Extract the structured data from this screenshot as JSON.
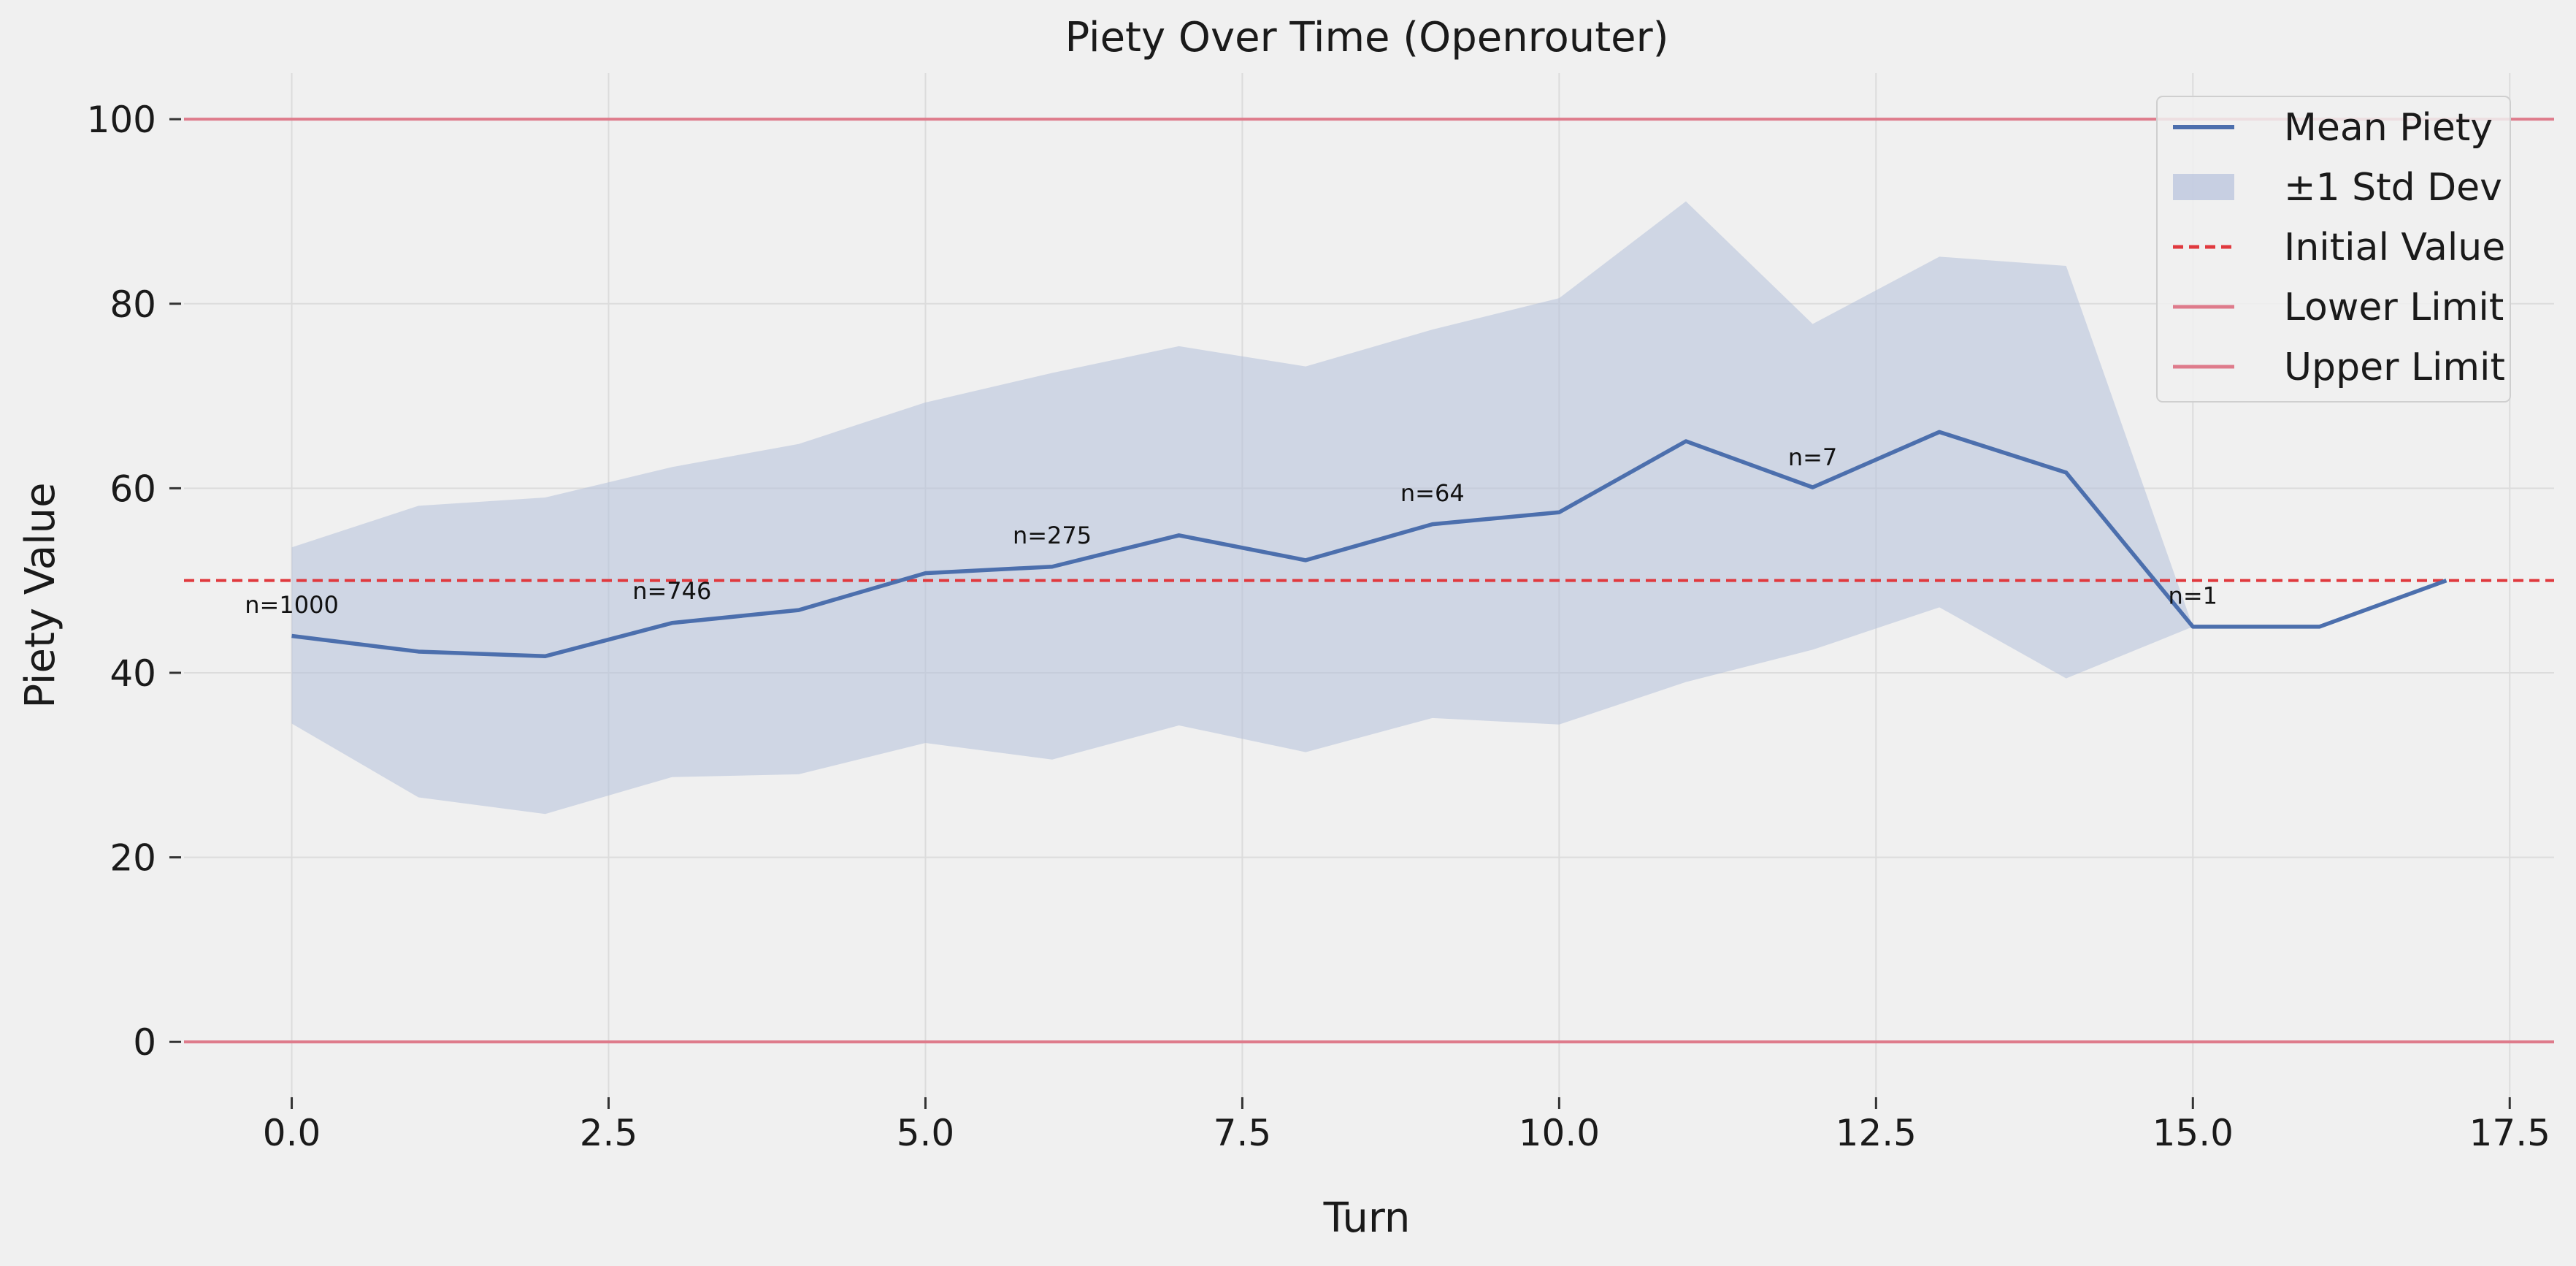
{
  "chart_data": {
    "type": "line",
    "title": "Piety Over Time (Openrouter)",
    "xlabel": "Turn",
    "ylabel": "Piety Value",
    "xlim": [
      -0.85,
      17.85
    ],
    "ylim": [
      -6,
      105
    ],
    "xticks": [
      0.0,
      2.5,
      5.0,
      7.5,
      10.0,
      12.5,
      15.0,
      17.5
    ],
    "xtick_labels": [
      "0.0",
      "2.5",
      "5.0",
      "7.5",
      "10.0",
      "12.5",
      "15.0",
      "17.5"
    ],
    "yticks": [
      0,
      20,
      40,
      60,
      80,
      100
    ],
    "ytick_labels": [
      "0",
      "20",
      "40",
      "60",
      "80",
      "100"
    ],
    "grid": true,
    "legend_position": "top-right",
    "x": [
      0,
      1,
      2,
      3,
      4,
      5,
      6,
      7,
      8,
      9,
      10,
      11,
      12,
      13,
      14,
      15,
      16,
      17
    ],
    "series": [
      {
        "name": "Mean Piety",
        "values": [
          44.0,
          42.3,
          41.8,
          45.4,
          46.8,
          50.8,
          51.5,
          54.9,
          52.2,
          56.1,
          57.4,
          65.1,
          60.1,
          66.1,
          61.7,
          45.0,
          45.0,
          50.0
        ],
        "color": "#4c6fad"
      },
      {
        "name": "±1 Std Dev",
        "lower": [
          34.5,
          26.5,
          24.7,
          28.7,
          29.0,
          32.4,
          30.6,
          34.3,
          31.4,
          35.1,
          34.4,
          39.0,
          42.5,
          47.1,
          39.4,
          45.0,
          45.0,
          50.0
        ],
        "upper": [
          53.6,
          58.1,
          59.0,
          62.3,
          64.8,
          69.3,
          72.5,
          75.4,
          73.2,
          77.2,
          80.6,
          91.1,
          77.8,
          85.1,
          84.1,
          45.0,
          45.0,
          50.0
        ],
        "color": "#b5c1db"
      }
    ],
    "reference_lines": [
      {
        "name": "Initial Value",
        "y": 50,
        "color": "#e0393e",
        "style": "dashed"
      },
      {
        "name": "Lower Limit",
        "y": 0,
        "color": "#de7b8b",
        "style": "solid"
      },
      {
        "name": "Upper Limit",
        "y": 100,
        "color": "#de7b8b",
        "style": "solid"
      }
    ],
    "annotations": [
      {
        "text": "n=1000",
        "x": 0,
        "y": 46.5
      },
      {
        "text": "n=746",
        "x": 3,
        "y": 48.0
      },
      {
        "text": "n=275",
        "x": 6,
        "y": 54.0
      },
      {
        "text": "n=64",
        "x": 9,
        "y": 58.6
      },
      {
        "text": "n=7",
        "x": 12,
        "y": 62.5
      },
      {
        "text": "n=1",
        "x": 15,
        "y": 47.5
      }
    ],
    "legend": [
      "Mean Piety",
      "±1 Std Dev",
      "Initial Value",
      "Lower Limit",
      "Upper Limit"
    ]
  }
}
